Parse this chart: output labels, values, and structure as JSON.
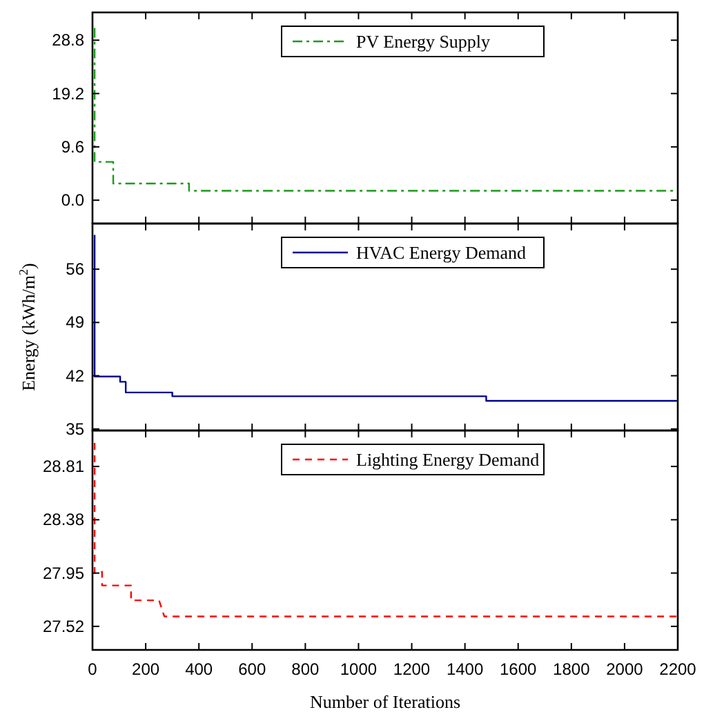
{
  "chart_data": [
    {
      "type": "line",
      "xlim": [
        0,
        2200
      ],
      "xticks": [
        0,
        200,
        400,
        600,
        800,
        1000,
        1200,
        1400,
        1600,
        1800,
        2000,
        2200
      ],
      "ylim": [
        -4.2,
        33.8
      ],
      "yticks": [
        {
          "value": 0,
          "label": "0.0"
        },
        9.6,
        19.2,
        28.8
      ],
      "tick_labels": "y",
      "legend": "top",
      "grid": false,
      "series": [
        {
          "name": "PV Energy Supply",
          "color": "#1a9a1a",
          "line_style": "dashdot",
          "x": [
            8,
            8,
            78,
            78,
            363,
            363,
            2200
          ],
          "values": [
            31,
            6.9,
            6.9,
            3.0,
            3.0,
            1.7,
            1.7
          ]
        }
      ]
    },
    {
      "type": "line",
      "xlim": [
        0,
        2200
      ],
      "xticks": [
        0,
        200,
        400,
        600,
        800,
        1000,
        1200,
        1400,
        1600,
        1800,
        2000,
        2200
      ],
      "ylim": [
        34.8,
        62
      ],
      "yticks": [
        35,
        42,
        49,
        56
      ],
      "tick_labels": "y",
      "legend": "top",
      "grid": false,
      "ylabel": "Energy (kWh/m$^{2}$)",
      "series": [
        {
          "name": "HVAC Energy Demand",
          "color": "#00008b",
          "line_style": "solid",
          "x": [
            8,
            8,
            104,
            104,
            125,
            125,
            300,
            300,
            1480,
            1480,
            2200
          ],
          "values": [
            60.5,
            41.9,
            41.9,
            41.2,
            41.2,
            39.8,
            39.8,
            39.3,
            39.3,
            38.7,
            38.7
          ]
        }
      ]
    },
    {
      "type": "line",
      "xlim": [
        0,
        2200
      ],
      "xticks": [
        0,
        200,
        400,
        600,
        800,
        1000,
        1200,
        1400,
        1600,
        1800,
        2000,
        2200
      ],
      "ylim": [
        27.33,
        29.1
      ],
      "yticks": [
        27.52,
        27.95,
        28.38,
        28.81
      ],
      "legend": "top",
      "grid": false,
      "xlabel": "Number of Iterations",
      "series": [
        {
          "name": "Lighting Energy Demand",
          "color": "#ff0000",
          "line_style": "dashed",
          "x": [
            8,
            8,
            36,
            36,
            145,
            145,
            250,
            270,
            2200
          ],
          "values": [
            29.0,
            27.95,
            27.96,
            27.85,
            27.85,
            27.73,
            27.73,
            27.6,
            27.6
          ]
        }
      ]
    }
  ]
}
